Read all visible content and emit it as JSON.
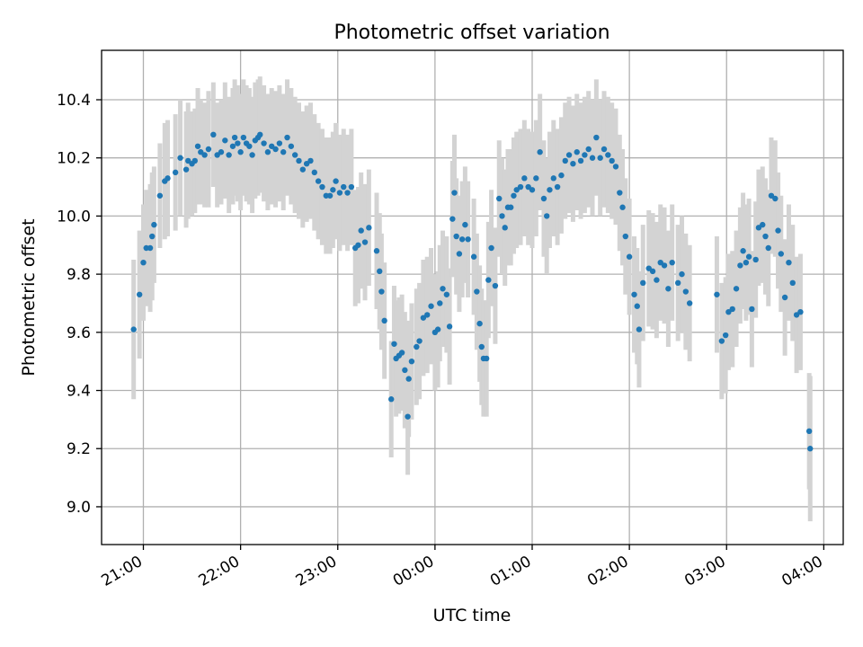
{
  "chart_data": {
    "type": "scatter",
    "title": "Photometric offset variation",
    "xlabel": "UTC time",
    "ylabel": "Photometric offset",
    "x_unit": "UTC hours (x values: UTC hours; values >= 24 fall after midnight)",
    "xlim": [
      20.57,
      28.2
    ],
    "ylim": [
      8.87,
      10.57
    ],
    "xticks": [
      21,
      22,
      23,
      24,
      25,
      26,
      27,
      28
    ],
    "xtick_labels": [
      "21:00",
      "22:00",
      "23:00",
      "00:00",
      "01:00",
      "02:00",
      "03:00",
      "04:00"
    ],
    "yticks": [
      9.0,
      9.2,
      9.4,
      9.6,
      9.8,
      10.0,
      10.2,
      10.4
    ],
    "ytick_labels": [
      "9.0",
      "9.2",
      "9.4",
      "9.6",
      "9.8",
      "10.0",
      "10.2",
      "10.4"
    ],
    "grid": true,
    "point_color": "#1f77b4",
    "errorbar_color": "#d3d3d3",
    "series": [
      {
        "points": [
          [
            20.9,
            9.61,
            0.24
          ],
          [
            20.96,
            9.73,
            0.22
          ],
          [
            21.0,
            9.84,
            0.2
          ],
          [
            21.03,
            9.89,
            0.2
          ],
          [
            21.07,
            9.89,
            0.22
          ],
          [
            21.09,
            9.93,
            0.22
          ],
          [
            21.11,
            9.97,
            0.2
          ],
          [
            21.17,
            10.07,
            0.18
          ],
          [
            21.22,
            10.12,
            0.2
          ],
          [
            21.25,
            10.13,
            0.2
          ],
          [
            21.33,
            10.15,
            0.2
          ],
          [
            21.38,
            10.2,
            0.2
          ],
          [
            21.44,
            10.16,
            0.2
          ],
          [
            21.46,
            10.19,
            0.2
          ],
          [
            21.5,
            10.18,
            0.18
          ],
          [
            21.53,
            10.19,
            0.18
          ],
          [
            21.56,
            10.24,
            0.2
          ],
          [
            21.59,
            10.22,
            0.18
          ],
          [
            21.63,
            10.21,
            0.18
          ],
          [
            21.67,
            10.23,
            0.2
          ],
          [
            21.72,
            10.28,
            0.18
          ],
          [
            21.76,
            10.21,
            0.18
          ],
          [
            21.8,
            10.22,
            0.18
          ],
          [
            21.84,
            10.26,
            0.2
          ],
          [
            21.88,
            10.21,
            0.2
          ],
          [
            21.92,
            10.24,
            0.2
          ],
          [
            21.94,
            10.27,
            0.2
          ],
          [
            21.97,
            10.25,
            0.2
          ],
          [
            22.0,
            10.22,
            0.2
          ],
          [
            22.03,
            10.27,
            0.2
          ],
          [
            22.06,
            10.25,
            0.2
          ],
          [
            22.09,
            10.24,
            0.2
          ],
          [
            22.12,
            10.21,
            0.2
          ],
          [
            22.15,
            10.26,
            0.2
          ],
          [
            22.18,
            10.27,
            0.2
          ],
          [
            22.2,
            10.28,
            0.2
          ],
          [
            22.24,
            10.25,
            0.2
          ],
          [
            22.28,
            10.22,
            0.2
          ],
          [
            22.32,
            10.24,
            0.2
          ],
          [
            22.36,
            10.23,
            0.2
          ],
          [
            22.4,
            10.25,
            0.2
          ],
          [
            22.44,
            10.22,
            0.2
          ],
          [
            22.48,
            10.27,
            0.2
          ],
          [
            22.52,
            10.24,
            0.2
          ],
          [
            22.56,
            10.21,
            0.2
          ],
          [
            22.6,
            10.19,
            0.2
          ],
          [
            22.64,
            10.16,
            0.2
          ],
          [
            22.68,
            10.18,
            0.2
          ],
          [
            22.72,
            10.19,
            0.2
          ],
          [
            22.76,
            10.15,
            0.2
          ],
          [
            22.8,
            10.12,
            0.2
          ],
          [
            22.84,
            10.1,
            0.2
          ],
          [
            22.88,
            10.07,
            0.2
          ],
          [
            22.92,
            10.07,
            0.2
          ],
          [
            22.95,
            10.09,
            0.2
          ],
          [
            22.98,
            10.12,
            0.2
          ],
          [
            23.02,
            10.08,
            0.2
          ],
          [
            23.06,
            10.1,
            0.2
          ],
          [
            23.1,
            10.08,
            0.2
          ],
          [
            23.14,
            10.1,
            0.2
          ],
          [
            23.18,
            9.89,
            0.2
          ],
          [
            23.21,
            9.9,
            0.2
          ],
          [
            23.24,
            9.95,
            0.2
          ],
          [
            23.28,
            9.91,
            0.2
          ],
          [
            23.32,
            9.96,
            0.2
          ],
          [
            23.4,
            9.88,
            0.2
          ],
          [
            23.43,
            9.81,
            0.2
          ],
          [
            23.45,
            9.74,
            0.2
          ],
          [
            23.48,
            9.64,
            0.2
          ],
          [
            23.55,
            9.37,
            0.2
          ],
          [
            23.58,
            9.56,
            0.2
          ],
          [
            23.6,
            9.51,
            0.2
          ],
          [
            23.63,
            9.52,
            0.2
          ],
          [
            23.66,
            9.53,
            0.2
          ],
          [
            23.69,
            9.47,
            0.2
          ],
          [
            23.72,
            9.31,
            0.2
          ],
          [
            23.73,
            9.44,
            0.2
          ],
          [
            23.76,
            9.5,
            0.2
          ],
          [
            23.81,
            9.55,
            0.2
          ],
          [
            23.84,
            9.57,
            0.2
          ],
          [
            23.88,
            9.65,
            0.2
          ],
          [
            23.92,
            9.66,
            0.2
          ],
          [
            23.96,
            9.69,
            0.2
          ],
          [
            24.0,
            9.6,
            0.2
          ],
          [
            24.03,
            9.61,
            0.2
          ],
          [
            24.05,
            9.7,
            0.2
          ],
          [
            24.08,
            9.75,
            0.2
          ],
          [
            24.12,
            9.73,
            0.2
          ],
          [
            24.15,
            9.62,
            0.2
          ],
          [
            24.18,
            9.99,
            0.2
          ],
          [
            24.2,
            10.08,
            0.2
          ],
          [
            24.22,
            9.93,
            0.2
          ],
          [
            24.25,
            9.87,
            0.2
          ],
          [
            24.28,
            9.92,
            0.2
          ],
          [
            24.31,
            9.97,
            0.2
          ],
          [
            24.34,
            9.92,
            0.2
          ],
          [
            24.4,
            9.86,
            0.2
          ],
          [
            24.43,
            9.74,
            0.2
          ],
          [
            24.46,
            9.63,
            0.2
          ],
          [
            24.48,
            9.55,
            0.2
          ],
          [
            24.5,
            9.51,
            0.2
          ],
          [
            24.53,
            9.51,
            0.2
          ],
          [
            24.55,
            9.78,
            0.2
          ],
          [
            24.58,
            9.89,
            0.2
          ],
          [
            24.62,
            9.76,
            0.2
          ],
          [
            24.66,
            10.06,
            0.2
          ],
          [
            24.69,
            10.0,
            0.2
          ],
          [
            24.72,
            9.96,
            0.2
          ],
          [
            24.75,
            10.03,
            0.2
          ],
          [
            24.78,
            10.03,
            0.2
          ],
          [
            24.81,
            10.07,
            0.2
          ],
          [
            24.84,
            10.09,
            0.2
          ],
          [
            24.88,
            10.1,
            0.2
          ],
          [
            24.92,
            10.13,
            0.2
          ],
          [
            24.96,
            10.1,
            0.2
          ],
          [
            25.0,
            10.09,
            0.2
          ],
          [
            25.04,
            10.13,
            0.2
          ],
          [
            25.08,
            10.22,
            0.2
          ],
          [
            25.12,
            10.06,
            0.2
          ],
          [
            25.15,
            10.0,
            0.2
          ],
          [
            25.18,
            10.09,
            0.2
          ],
          [
            25.22,
            10.13,
            0.2
          ],
          [
            25.26,
            10.1,
            0.2
          ],
          [
            25.3,
            10.14,
            0.2
          ],
          [
            25.34,
            10.19,
            0.2
          ],
          [
            25.38,
            10.21,
            0.2
          ],
          [
            25.42,
            10.18,
            0.2
          ],
          [
            25.46,
            10.22,
            0.2
          ],
          [
            25.5,
            10.19,
            0.2
          ],
          [
            25.54,
            10.21,
            0.2
          ],
          [
            25.58,
            10.23,
            0.2
          ],
          [
            25.62,
            10.2,
            0.2
          ],
          [
            25.66,
            10.27,
            0.2
          ],
          [
            25.7,
            10.2,
            0.2
          ],
          [
            25.74,
            10.23,
            0.2
          ],
          [
            25.78,
            10.21,
            0.2
          ],
          [
            25.82,
            10.19,
            0.2
          ],
          [
            25.86,
            10.17,
            0.2
          ],
          [
            25.9,
            10.08,
            0.2
          ],
          [
            25.93,
            10.03,
            0.2
          ],
          [
            25.96,
            9.93,
            0.2
          ],
          [
            26.0,
            9.86,
            0.2
          ],
          [
            26.05,
            9.73,
            0.2
          ],
          [
            26.08,
            9.69,
            0.2
          ],
          [
            26.1,
            9.61,
            0.2
          ],
          [
            26.14,
            9.77,
            0.2
          ],
          [
            26.2,
            9.82,
            0.2
          ],
          [
            26.24,
            9.81,
            0.2
          ],
          [
            26.28,
            9.78,
            0.2
          ],
          [
            26.32,
            9.84,
            0.2
          ],
          [
            26.36,
            9.83,
            0.2
          ],
          [
            26.4,
            9.75,
            0.2
          ],
          [
            26.44,
            9.84,
            0.2
          ],
          [
            26.5,
            9.77,
            0.2
          ],
          [
            26.54,
            9.8,
            0.2
          ],
          [
            26.58,
            9.74,
            0.2
          ],
          [
            26.62,
            9.7,
            0.2
          ],
          [
            26.9,
            9.73,
            0.2
          ],
          [
            26.95,
            9.57,
            0.2
          ],
          [
            26.99,
            9.59,
            0.2
          ],
          [
            27.02,
            9.67,
            0.2
          ],
          [
            27.06,
            9.68,
            0.2
          ],
          [
            27.1,
            9.75,
            0.2
          ],
          [
            27.14,
            9.83,
            0.2
          ],
          [
            27.17,
            9.88,
            0.2
          ],
          [
            27.2,
            9.84,
            0.2
          ],
          [
            27.23,
            9.86,
            0.2
          ],
          [
            27.26,
            9.68,
            0.2
          ],
          [
            27.3,
            9.85,
            0.2
          ],
          [
            27.33,
            9.96,
            0.2
          ],
          [
            27.37,
            9.97,
            0.2
          ],
          [
            27.4,
            9.93,
            0.2
          ],
          [
            27.43,
            9.89,
            0.2
          ],
          [
            27.46,
            10.07,
            0.2
          ],
          [
            27.5,
            10.06,
            0.2
          ],
          [
            27.53,
            9.95,
            0.2
          ],
          [
            27.56,
            9.87,
            0.2
          ],
          [
            27.6,
            9.72,
            0.2
          ],
          [
            27.64,
            9.84,
            0.2
          ],
          [
            27.68,
            9.77,
            0.2
          ],
          [
            27.72,
            9.66,
            0.2
          ],
          [
            27.76,
            9.67,
            0.2
          ],
          [
            27.85,
            9.26,
            0.2
          ],
          [
            27.86,
            9.2,
            0.25
          ]
        ]
      }
    ]
  }
}
